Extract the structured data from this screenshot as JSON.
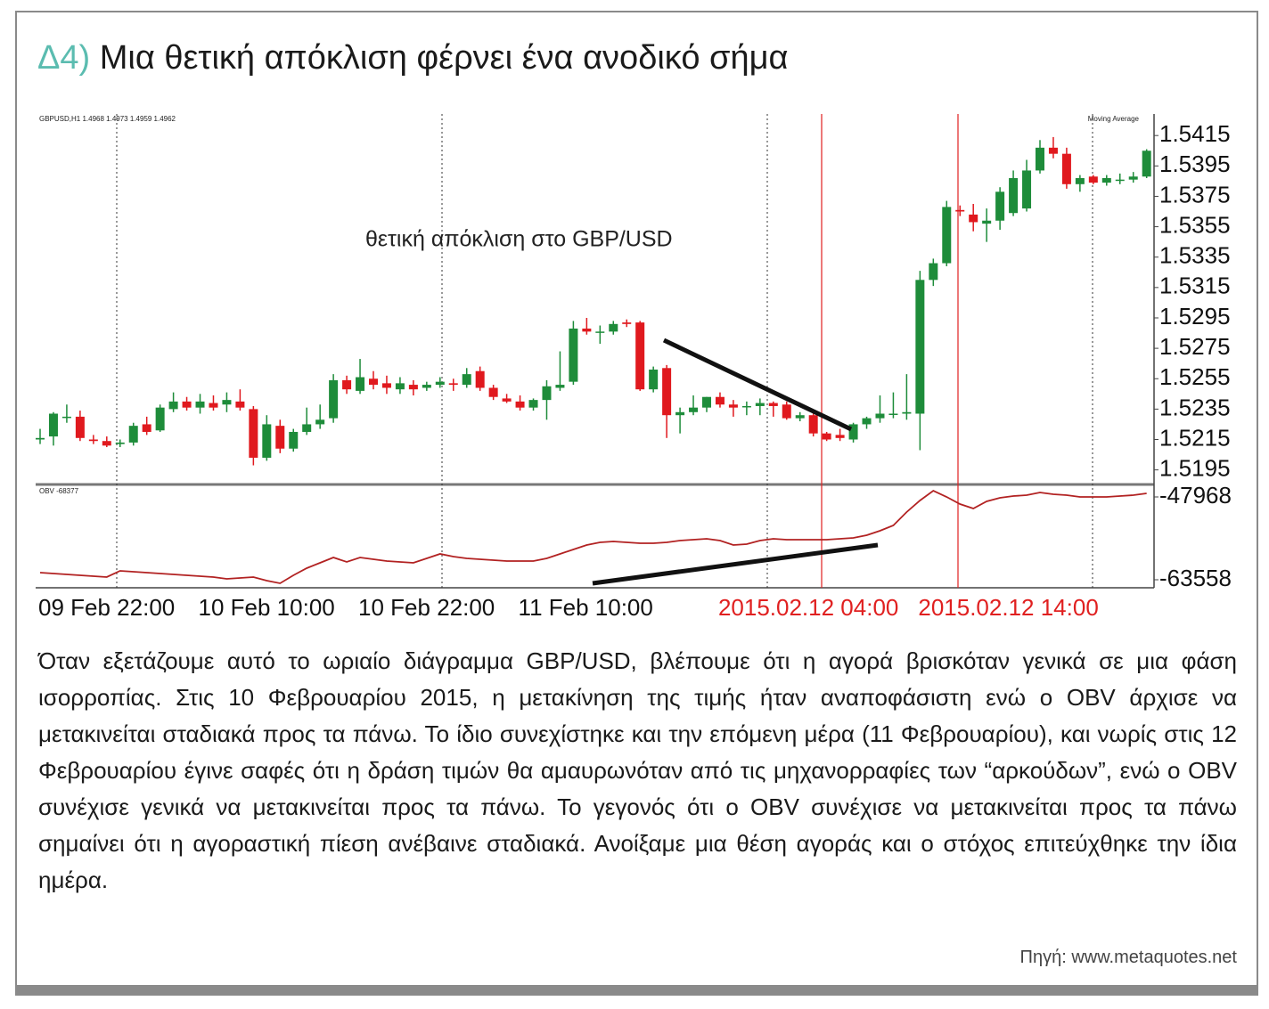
{
  "heading": {
    "label": "Δ4)",
    "title": "Μια θετική απόκλιση φέρνει ένα ανοδικό σήμα"
  },
  "chart_data": [
    {
      "type": "candlestick",
      "header": "GBPUSD,H1  1.4968 1.4973 1.4959 1.4962",
      "indicator": "Moving Average",
      "annotation": "θετική απόκλιση στο GBP/USD",
      "up_color": "#1e8c3a",
      "down_color": "#e0191e",
      "ylim": [
        1.5186,
        1.5428
      ],
      "yticks": [
        1.5195,
        1.5215,
        1.5235,
        1.5255,
        1.5275,
        1.5295,
        1.5315,
        1.5335,
        1.5355,
        1.5375,
        1.5395,
        1.5415
      ],
      "open": [
        1.5215,
        1.5217,
        1.523,
        1.523,
        1.5215,
        1.5214,
        1.5212,
        1.5213,
        1.5225,
        1.5221,
        1.5235,
        1.524,
        1.5236,
        1.5239,
        1.5238,
        1.524,
        1.5235,
        1.5203,
        1.5224,
        1.5209,
        1.522,
        1.5225,
        1.5229,
        1.5254,
        1.5247,
        1.5255,
        1.5252,
        1.5248,
        1.5251,
        1.5249,
        1.5251,
        1.5252,
        1.5251,
        1.526,
        1.5249,
        1.5242,
        1.524,
        1.5236,
        1.5241,
        1.5249,
        1.5253,
        1.5288,
        1.5286,
        1.5286,
        1.5292,
        1.5292,
        1.5248,
        1.5262,
        1.5231,
        1.5233,
        1.5236,
        1.5243,
        1.5238,
        1.5237,
        1.5237,
        1.5239,
        1.5238,
        1.5229,
        1.5231,
        1.5219,
        1.5218,
        1.5215,
        1.5225,
        1.5229,
        1.5232,
        1.5232,
        1.5232,
        1.532,
        1.5331,
        1.5366,
        1.5363,
        1.5357,
        1.5359,
        1.5364,
        1.5367,
        1.5392,
        1.5407,
        1.5403,
        1.5383,
        1.5388,
        1.5384,
        1.5386,
        1.5386,
        1.5388
      ],
      "high": [
        1.5222,
        1.5233,
        1.5238,
        1.5234,
        1.5218,
        1.5217,
        1.5215,
        1.5226,
        1.523,
        1.5238,
        1.5246,
        1.5243,
        1.5245,
        1.5244,
        1.5246,
        1.5248,
        1.5237,
        1.5231,
        1.5228,
        1.5222,
        1.5236,
        1.5238,
        1.5258,
        1.5257,
        1.5268,
        1.526,
        1.5257,
        1.5256,
        1.5254,
        1.5253,
        1.5256,
        1.5255,
        1.5262,
        1.5263,
        1.5251,
        1.5245,
        1.5244,
        1.5242,
        1.5254,
        1.5273,
        1.5293,
        1.5295,
        1.529,
        1.5293,
        1.5294,
        1.5293,
        1.5263,
        1.5264,
        1.5236,
        1.5244,
        1.5243,
        1.5246,
        1.5241,
        1.524,
        1.5242,
        1.524,
        1.524,
        1.5233,
        1.5232,
        1.522,
        1.5222,
        1.5226,
        1.523,
        1.5244,
        1.5246,
        1.5258,
        1.5326,
        1.5334,
        1.5372,
        1.5369,
        1.537,
        1.5367,
        1.5381,
        1.5392,
        1.5399,
        1.5412,
        1.5414,
        1.5407,
        1.5389,
        1.5389,
        1.5389,
        1.539,
        1.5391,
        1.5406
      ],
      "low": [
        1.5212,
        1.5211,
        1.5226,
        1.5214,
        1.5212,
        1.521,
        1.521,
        1.5211,
        1.5218,
        1.522,
        1.5233,
        1.5234,
        1.5232,
        1.5234,
        1.5233,
        1.5234,
        1.5198,
        1.5201,
        1.5206,
        1.5207,
        1.5218,
        1.5222,
        1.5226,
        1.5245,
        1.5245,
        1.5248,
        1.5245,
        1.5245,
        1.5244,
        1.5247,
        1.5249,
        1.5247,
        1.5249,
        1.5247,
        1.5241,
        1.5239,
        1.5234,
        1.5234,
        1.5228,
        1.5247,
        1.5251,
        1.5284,
        1.5278,
        1.5284,
        1.5289,
        1.5247,
        1.5246,
        1.5216,
        1.5219,
        1.5231,
        1.5233,
        1.5236,
        1.523,
        1.5231,
        1.5231,
        1.523,
        1.5228,
        1.5227,
        1.5217,
        1.5214,
        1.5214,
        1.5213,
        1.5222,
        1.5226,
        1.5229,
        1.5228,
        1.5208,
        1.5316,
        1.5329,
        1.5362,
        1.5352,
        1.5345,
        1.5353,
        1.5362,
        1.5365,
        1.539,
        1.54,
        1.538,
        1.5378,
        1.5383,
        1.5382,
        1.5383,
        1.5384,
        1.5387
      ],
      "close": [
        1.5216,
        1.5232,
        1.523,
        1.5216,
        1.5214,
        1.5211,
        1.5213,
        1.5224,
        1.522,
        1.5236,
        1.524,
        1.5236,
        1.524,
        1.5236,
        1.5241,
        1.5236,
        1.5203,
        1.5225,
        1.5209,
        1.522,
        1.5225,
        1.5228,
        1.5254,
        1.5248,
        1.5256,
        1.5251,
        1.5249,
        1.5252,
        1.5248,
        1.5251,
        1.5253,
        1.5251,
        1.5258,
        1.5249,
        1.5243,
        1.524,
        1.5236,
        1.5241,
        1.525,
        1.5251,
        1.5288,
        1.5286,
        1.5286,
        1.5291,
        1.5291,
        1.5248,
        1.5261,
        1.5231,
        1.5233,
        1.5236,
        1.5243,
        1.5238,
        1.5236,
        1.5237,
        1.5239,
        1.5237,
        1.5229,
        1.5231,
        1.5219,
        1.5215,
        1.5216,
        1.5225,
        1.5229,
        1.5232,
        1.5232,
        1.5233,
        1.532,
        1.5331,
        1.5368,
        1.5365,
        1.5358,
        1.5359,
        1.5378,
        1.5387,
        1.5392,
        1.5407,
        1.5403,
        1.5383,
        1.5387,
        1.5384,
        1.5387,
        1.5386,
        1.5388,
        1.5405
      ]
    },
    {
      "type": "line",
      "header": "OBV -68377",
      "color": "#b22222",
      "ylim": [
        -65067,
        -45789
      ],
      "yticks": [
        -47968,
        -63558
      ],
      "categories": [
        "09 Feb 22:00",
        null,
        null,
        null,
        null,
        null,
        null,
        null,
        null,
        null,
        null,
        null,
        "10 Feb 10:00",
        null,
        null,
        null,
        null,
        null,
        null,
        null,
        null,
        null,
        null,
        null,
        "10 Feb 22:00",
        null,
        null,
        null,
        null,
        null,
        null,
        null,
        null,
        null,
        null,
        null,
        "11 Feb 10:00",
        null,
        null,
        null,
        null,
        null,
        null,
        null,
        null,
        null,
        null,
        null,
        null,
        null,
        null,
        "2015.02.12 04:00",
        null,
        null,
        null,
        null,
        null,
        null,
        null,
        null,
        null,
        null,
        null,
        null,
        null,
        null,
        "2015.02.12 14:00",
        null,
        null,
        null,
        null,
        null,
        null,
        null,
        null,
        null,
        null,
        null,
        null,
        null,
        null,
        null,
        null,
        null
      ],
      "category_colors": [
        "#111111",
        null,
        null,
        null,
        null,
        null,
        null,
        null,
        null,
        null,
        null,
        null,
        "#111111",
        null,
        null,
        null,
        null,
        null,
        null,
        null,
        null,
        null,
        null,
        null,
        "#111111",
        null,
        null,
        null,
        null,
        null,
        null,
        null,
        null,
        null,
        null,
        null,
        "#111111",
        null,
        null,
        null,
        null,
        null,
        null,
        null,
        null,
        null,
        null,
        null,
        null,
        null,
        null,
        "#e02020",
        null,
        null,
        null,
        null,
        null,
        null,
        null,
        null,
        null,
        null,
        null,
        null,
        null,
        null,
        "#e02020",
        null,
        null,
        null,
        null,
        null,
        null,
        null,
        null,
        null,
        null,
        null,
        null,
        null,
        null,
        null,
        null,
        null
      ],
      "values": [
        -62214,
        -62382,
        -62549,
        -62717,
        -62884,
        -63052,
        -61879,
        -62046,
        -62214,
        -62382,
        -62549,
        -62717,
        -62884,
        -63052,
        -63387,
        -63220,
        -63052,
        -63722,
        -64225,
        -62717,
        -61376,
        -60370,
        -59365,
        -60203,
        -59365,
        -59700,
        -60035,
        -60203,
        -60370,
        -59532,
        -58694,
        -59197,
        -59532,
        -59700,
        -59868,
        -60035,
        -60035,
        -60035,
        -59532,
        -58694,
        -57856,
        -57018,
        -56516,
        -56348,
        -56516,
        -56683,
        -56683,
        -56516,
        -56180,
        -56013,
        -55845,
        -56180,
        -57018,
        -56851,
        -56180,
        -55845,
        -56013,
        -56013,
        -56013,
        -56013,
        -55845,
        -55678,
        -55175,
        -54337,
        -53331,
        -50817,
        -48638,
        -46795,
        -47968,
        -49309,
        -50147,
        -48806,
        -48136,
        -47800,
        -47633,
        -47130,
        -47465,
        -47633,
        -47968,
        -47968,
        -47968,
        -47800,
        -47633,
        -47298
      ]
    }
  ],
  "body": "Όταν εξετάζουμε αυτό το ωριαίο διάγραμμα GBP/USD, βλέπουμε ότι η αγορά βρισκόταν γενικά σε μια φάση ισορροπίας. Στις 10 Φεβρουαρίου 2015, η μετακίνηση της τιμής ήταν αναποφάσιστη ενώ ο OBV άρχισε να μετακινείται σταδιακά προς τα πάνω. Το ίδιο συνεχίστηκε και την επόμενη μέρα (11 Φεβρουαρίου), και νωρίς στις 12 Φεβρουαρίου έγινε σαφές ότι η δράση τιμών θα αμαυρωνόταν από τις μηχανορραφίες των “αρκούδων”, ενώ ο OBV συνέχισε γενικά να μετακινείται προς τα πάνω. Το γεγονός ότι ο OBV συνέχισε να μετακινείται προς τα πάνω σημαίνει ότι η αγοραστική πίεση ανέβαινε σταδιακά. Ανοίξαμε μια θέση αγοράς και ο στόχος επιτεύχθηκε την ίδια ημέρα.",
  "source": "Πηγή: www.metaquotes.net"
}
